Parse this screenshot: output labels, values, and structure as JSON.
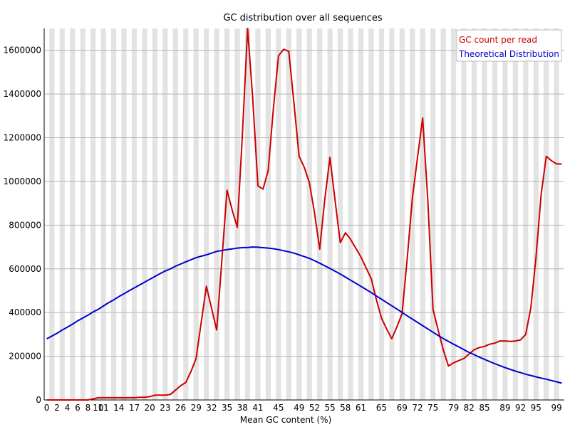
{
  "chart_data": {
    "type": "line",
    "title": "GC distribution over all sequences",
    "xlabel": "Mean GC content (%)",
    "ylabel": "",
    "xlim": [
      0,
      101
    ],
    "ylim": [
      0,
      1700000
    ],
    "grid": true,
    "legend_position": "top-right",
    "x_tick_labels": [
      "0",
      "2",
      "4",
      "6",
      "8",
      "10",
      "11",
      "14",
      "17",
      "20",
      "23",
      "26",
      "29",
      "32",
      "35",
      "38",
      "41",
      "45",
      "49",
      "52",
      "55",
      "58",
      "61",
      "65",
      "69",
      "72",
      "75",
      "79",
      "82",
      "85",
      "89",
      "92",
      "95",
      "99"
    ],
    "x_tick_positions": [
      0,
      2,
      4,
      6,
      8,
      10,
      11,
      14,
      17,
      20,
      23,
      26,
      29,
      32,
      35,
      38,
      41,
      45,
      49,
      52,
      55,
      58,
      61,
      65,
      69,
      72,
      75,
      79,
      82,
      85,
      89,
      92,
      95,
      99
    ],
    "y_ticks": [
      0,
      200000,
      400000,
      600000,
      800000,
      1000000,
      1200000,
      1400000,
      1600000
    ],
    "y_tick_labels": [
      "0",
      "200000",
      "400000",
      "600000",
      "800000",
      "1000000",
      "1200000",
      "1400000",
      "1600000"
    ],
    "series": [
      {
        "name": "GC count per read",
        "color": "#cc0000",
        "x": [
          0,
          1,
          2,
          3,
          4,
          5,
          6,
          7,
          8,
          9,
          10,
          11,
          12,
          13,
          14,
          15,
          16,
          17,
          18,
          19,
          20,
          21,
          22,
          23,
          24,
          25,
          26,
          27,
          28,
          29,
          30,
          31,
          32,
          33,
          34,
          35,
          36,
          37,
          38,
          39,
          40,
          41,
          42,
          43,
          44,
          45,
          46,
          47,
          48,
          49,
          50,
          51,
          52,
          53,
          54,
          55,
          56,
          57,
          58,
          59,
          60,
          61,
          62,
          63,
          64,
          65,
          66,
          67,
          68,
          69,
          70,
          71,
          72,
          73,
          74,
          75,
          76,
          77,
          78,
          79,
          80,
          81,
          82,
          83,
          84,
          85,
          86,
          87,
          88,
          89,
          90,
          91,
          92,
          93,
          94,
          95,
          96,
          97,
          98,
          99,
          100
        ],
        "values": [
          0,
          0,
          0,
          0,
          0,
          0,
          0,
          0,
          0,
          5000,
          10000,
          10000,
          10000,
          10000,
          10000,
          10000,
          10000,
          10000,
          12000,
          12000,
          15000,
          22000,
          22000,
          22000,
          25000,
          45000,
          65000,
          80000,
          130000,
          190000,
          355000,
          520000,
          420000,
          320000,
          640000,
          960000,
          870000,
          790000,
          1220000,
          1700000,
          1380000,
          980000,
          965000,
          1050000,
          1330000,
          1575000,
          1605000,
          1595000,
          1360000,
          1115000,
          1065000,
          995000,
          855000,
          690000,
          920000,
          1110000,
          910000,
          720000,
          765000,
          735000,
          695000,
          655000,
          605000,
          555000,
          460000,
          375000,
          325000,
          280000,
          335000,
          395000,
          650000,
          925000,
          1110000,
          1290000,
          910000,
          415000,
          320000,
          230000,
          155000,
          170000,
          180000,
          190000,
          210000,
          230000,
          240000,
          245000,
          255000,
          260000,
          270000,
          270000,
          268000,
          270000,
          275000,
          300000,
          420000,
          650000,
          940000,
          1115000,
          1095000,
          1080000,
          1080000
        ]
      },
      {
        "name": "Theoretical Distribution",
        "color": "#0000cc",
        "x": [
          0,
          1,
          2,
          3,
          4,
          5,
          6,
          7,
          8,
          9,
          10,
          11,
          12,
          13,
          14,
          15,
          16,
          17,
          18,
          19,
          20,
          21,
          22,
          23,
          24,
          25,
          26,
          27,
          28,
          29,
          30,
          31,
          32,
          33,
          34,
          35,
          36,
          37,
          38,
          39,
          40,
          41,
          42,
          43,
          44,
          45,
          46,
          47,
          48,
          49,
          50,
          51,
          52,
          53,
          54,
          55,
          56,
          57,
          58,
          59,
          60,
          61,
          62,
          63,
          64,
          65,
          66,
          67,
          68,
          69,
          70,
          71,
          72,
          73,
          74,
          75,
          76,
          77,
          78,
          79,
          80,
          81,
          82,
          83,
          84,
          85,
          86,
          87,
          88,
          89,
          90,
          91,
          92,
          93,
          94,
          95,
          96,
          97,
          98,
          99,
          100
        ],
        "values": [
          280000,
          292000,
          305000,
          320000,
          333000,
          347000,
          362000,
          375000,
          388000,
          403000,
          415000,
          430000,
          445000,
          458000,
          473000,
          486000,
          500000,
          513000,
          526000,
          539000,
          552000,
          565000,
          578000,
          590000,
          600000,
          612000,
          622000,
          632000,
          642000,
          651000,
          658000,
          664000,
          672000,
          680000,
          684000,
          688000,
          691000,
          695000,
          697000,
          698000,
          700000,
          699000,
          697000,
          695000,
          692000,
          688000,
          683000,
          678000,
          672000,
          664000,
          656000,
          648000,
          637000,
          626000,
          614000,
          602000,
          589000,
          576000,
          562000,
          548000,
          534000,
          520000,
          506000,
          491000,
          476000,
          461000,
          446000,
          431000,
          416000,
          401000,
          385000,
          370000,
          355000,
          340000,
          325000,
          310000,
          295000,
          281000,
          268000,
          255000,
          243000,
          230000,
          218000,
          207000,
          196000,
          186000,
          176000,
          166000,
          157000,
          148000,
          140000,
          132000,
          125000,
          118000,
          112000,
          106000,
          100000,
          95000,
          89000,
          83000,
          77000
        ]
      }
    ]
  }
}
